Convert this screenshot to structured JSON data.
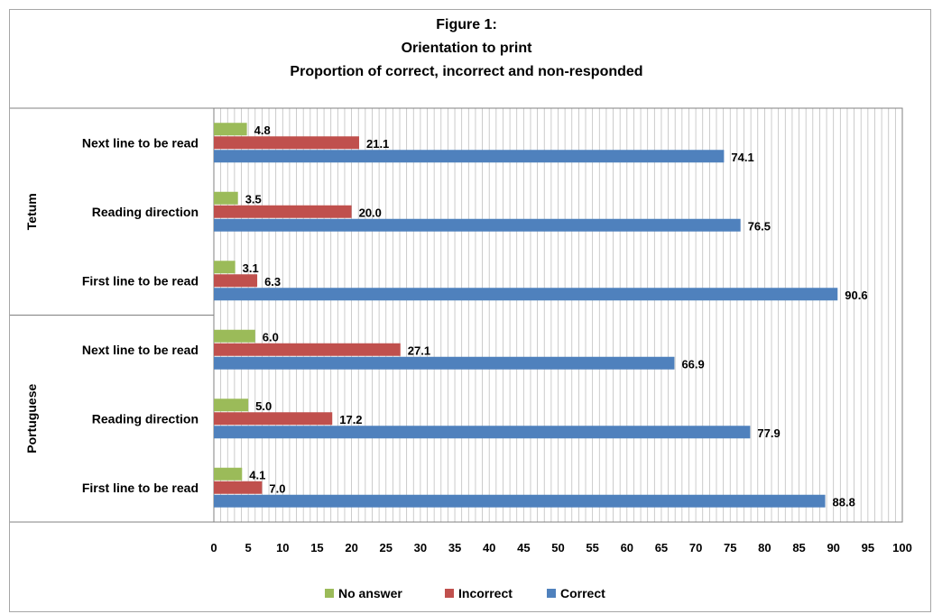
{
  "title_lines": [
    "Figure 1:",
    "Orientation to print",
    "Proportion of correct, incorrect and non-responded"
  ],
  "chart_data": {
    "type": "bar",
    "orientation": "horizontal",
    "title": "Figure 1: Orientation to print Proportion of correct, incorrect and non-responded",
    "groups": [
      {
        "name": "Tetum",
        "categories": [
          "Next line to be read",
          "Reading direction",
          "First line to be read"
        ]
      },
      {
        "name": "Portuguese",
        "categories": [
          "Next line to be read",
          "Reading direction",
          "First line to be read"
        ]
      }
    ],
    "series": [
      {
        "name": "No answer",
        "color": "#9bbb59",
        "values": [
          4.8,
          3.5,
          3.1,
          6.0,
          5.0,
          4.1
        ]
      },
      {
        "name": "Incorrect",
        "color": "#c0504d",
        "values": [
          21.1,
          20.0,
          6.3,
          27.1,
          17.2,
          7.0
        ]
      },
      {
        "name": "Correct",
        "color": "#4f81bd",
        "values": [
          74.1,
          76.5,
          90.6,
          66.9,
          77.9,
          88.8
        ]
      }
    ],
    "value_labels": [
      [
        "4.8",
        "3.5",
        "3.1",
        "6.0",
        "5.0",
        "4.1"
      ],
      [
        "21.1",
        "20.0",
        "6.3",
        "27.1",
        "17.2",
        "7.0"
      ],
      [
        "74.1",
        "76.5",
        "90.6",
        "66.9",
        "77.9",
        "88.8"
      ]
    ],
    "xlim": [
      0,
      100
    ],
    "xticks": [
      0,
      5,
      10,
      15,
      20,
      25,
      30,
      35,
      40,
      45,
      50,
      55,
      60,
      65,
      70,
      75,
      80,
      85,
      90,
      95,
      100
    ],
    "grid": true,
    "legend_position": "bottom"
  }
}
